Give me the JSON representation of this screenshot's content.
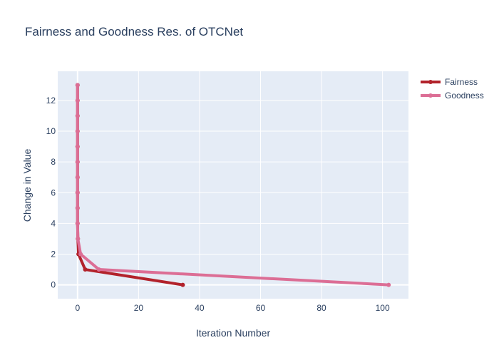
{
  "chart_data": {
    "type": "line",
    "title": "Fairness and Goodness Res. of OTCNet",
    "xlabel": "Iteration Number",
    "ylabel": "Change in Value",
    "xlim": [
      -6.5,
      108.5
    ],
    "ylim": [
      -0.9,
      13.9
    ],
    "xticks": [
      0,
      20,
      40,
      60,
      80,
      100
    ],
    "yticks": [
      0,
      2,
      4,
      6,
      8,
      10,
      12
    ],
    "grid": true,
    "legend_position": "top-right",
    "series": [
      {
        "name": "Fairness",
        "color": "#b2222b",
        "x": [
          0,
          0,
          0,
          0,
          0,
          0,
          0,
          0,
          0,
          0,
          0.1,
          0.3,
          2.5,
          34.5
        ],
        "y": [
          13,
          12,
          11,
          10,
          9,
          8,
          7,
          6,
          5,
          4,
          3,
          2,
          1,
          0
        ]
      },
      {
        "name": "Goodness",
        "color": "#dc6e95",
        "x": [
          0,
          0,
          0,
          0,
          0,
          0,
          0,
          0,
          0,
          0,
          0.1,
          1,
          7,
          102
        ],
        "y": [
          13,
          12,
          11,
          10,
          9,
          8,
          7,
          6,
          5,
          4,
          3,
          2,
          1,
          0
        ]
      }
    ]
  }
}
